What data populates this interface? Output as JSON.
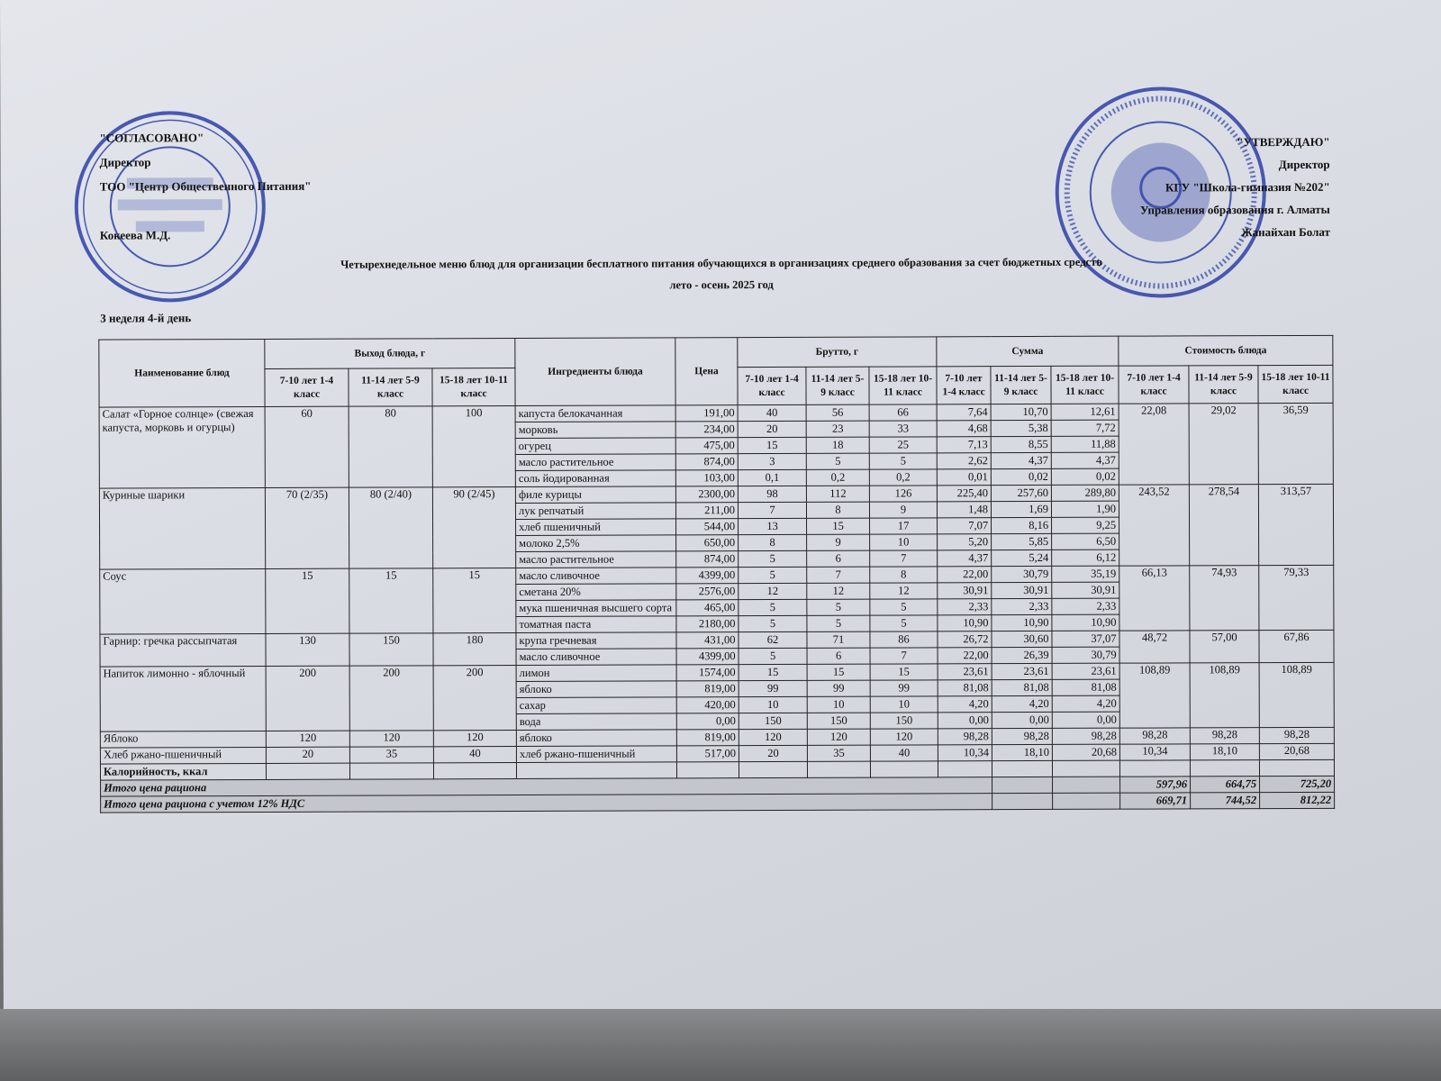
{
  "approval_left": {
    "label": "\"СОГЛАСОВАНО\"",
    "role": "Директор",
    "org": "ТОО \"Центр Общественного Питания\"",
    "name": "Кокеева М.Д."
  },
  "approval_right": {
    "label": "\"УТВЕРЖДАЮ\"",
    "role": "Директор",
    "org": "КГУ \"Школа-гимназия №202\"",
    "dept": "Управления образования г. Алматы",
    "name": "Жанайхан Болат"
  },
  "stamps": {
    "left": "Центр Общественного Питания",
    "right": "БСН 201... 10030808 МЕКТЕП-ГИМНАЗИЯ №202"
  },
  "stamp_color": "#2d3fa8",
  "title": "Четырехнедельное меню блюд для организации бесплатного питания обучающихся в организациях среднего образования за счет бюджетных средств",
  "subtitle": "лето - осень 2025 год",
  "week_day": "3 неделя 4-й день",
  "table": {
    "headers": {
      "name": "Наименование блюд",
      "yield": "Выход блюда, г",
      "ingredients": "Ингредиенты блюда",
      "price": "Цена",
      "brutto": "Брутто, г",
      "sum": "Сумма",
      "cost": "Стоимость блюда",
      "ages": [
        "7-10 лет 1-4 класс",
        "11-14 лет 5-9 класс",
        "15-18 лет 10-11 класс"
      ]
    },
    "dishes": [
      {
        "name": "Салат «Горное солнце» (свежая капуста, морковь и огурцы)",
        "yield": [
          "60",
          "80",
          "100"
        ],
        "cost": [
          "22,08",
          "29,02",
          "36,59"
        ],
        "ingredients": [
          {
            "name": "капуста белокачанная",
            "price": "191,00",
            "brutto": [
              "40",
              "56",
              "66"
            ],
            "sum": [
              "7,64",
              "10,70",
              "12,61"
            ]
          },
          {
            "name": "морковь",
            "price": "234,00",
            "brutto": [
              "20",
              "23",
              "33"
            ],
            "sum": [
              "4,68",
              "5,38",
              "7,72"
            ]
          },
          {
            "name": "огурец",
            "price": "475,00",
            "brutto": [
              "15",
              "18",
              "25"
            ],
            "sum": [
              "7,13",
              "8,55",
              "11,88"
            ]
          },
          {
            "name": "масло растительное",
            "price": "874,00",
            "brutto": [
              "3",
              "5",
              "5"
            ],
            "sum": [
              "2,62",
              "4,37",
              "4,37"
            ]
          },
          {
            "name": "соль йодированная",
            "price": "103,00",
            "brutto": [
              "0,1",
              "0,2",
              "0,2"
            ],
            "sum": [
              "0,01",
              "0,02",
              "0,02"
            ]
          }
        ]
      },
      {
        "name": "Куриные шарики",
        "yield": [
          "70 (2/35)",
          "80 (2/40)",
          "90 (2/45)"
        ],
        "cost": [
          "243,52",
          "278,54",
          "313,57"
        ],
        "ingredients": [
          {
            "name": "филе курицы",
            "price": "2300,00",
            "brutto": [
              "98",
              "112",
              "126"
            ],
            "sum": [
              "225,40",
              "257,60",
              "289,80"
            ]
          },
          {
            "name": "лук репчатый",
            "price": "211,00",
            "brutto": [
              "7",
              "8",
              "9"
            ],
            "sum": [
              "1,48",
              "1,69",
              "1,90"
            ]
          },
          {
            "name": "хлеб пшеничный",
            "price": "544,00",
            "brutto": [
              "13",
              "15",
              "17"
            ],
            "sum": [
              "7,07",
              "8,16",
              "9,25"
            ]
          },
          {
            "name": "молоко 2,5%",
            "price": "650,00",
            "brutto": [
              "8",
              "9",
              "10"
            ],
            "sum": [
              "5,20",
              "5,85",
              "6,50"
            ]
          },
          {
            "name": "масло растительное",
            "price": "874,00",
            "brutto": [
              "5",
              "6",
              "7"
            ],
            "sum": [
              "4,37",
              "5,24",
              "6,12"
            ]
          }
        ]
      },
      {
        "name": "Соус",
        "yield": [
          "15",
          "15",
          "15"
        ],
        "cost": [
          "66,13",
          "74,93",
          "79,33"
        ],
        "ingredients": [
          {
            "name": "масло сливочное",
            "price": "4399,00",
            "brutto": [
              "5",
              "7",
              "8"
            ],
            "sum": [
              "22,00",
              "30,79",
              "35,19"
            ]
          },
          {
            "name": "сметана 20%",
            "price": "2576,00",
            "brutto": [
              "12",
              "12",
              "12"
            ],
            "sum": [
              "30,91",
              "30,91",
              "30,91"
            ]
          },
          {
            "name": "мука пшеничная высшего сорта",
            "price": "465,00",
            "brutto": [
              "5",
              "5",
              "5"
            ],
            "sum": [
              "2,33",
              "2,33",
              "2,33"
            ]
          },
          {
            "name": "томатная паста",
            "price": "2180,00",
            "brutto": [
              "5",
              "5",
              "5"
            ],
            "sum": [
              "10,90",
              "10,90",
              "10,90"
            ]
          }
        ]
      },
      {
        "name": "Гарнир: гречка рассыпчатая",
        "yield": [
          "130",
          "150",
          "180"
        ],
        "cost": [
          "48,72",
          "57,00",
          "67,86"
        ],
        "ingredients": [
          {
            "name": "крупа гречневая",
            "price": "431,00",
            "brutto": [
              "62",
              "71",
              "86"
            ],
            "sum": [
              "26,72",
              "30,60",
              "37,07"
            ]
          },
          {
            "name": "масло сливочное",
            "price": "4399,00",
            "brutto": [
              "5",
              "6",
              "7"
            ],
            "sum": [
              "22,00",
              "26,39",
              "30,79"
            ]
          }
        ]
      },
      {
        "name": "Напиток лимонно - яблочный",
        "yield": [
          "200",
          "200",
          "200"
        ],
        "cost": [
          "108,89",
          "108,89",
          "108,89"
        ],
        "ingredients": [
          {
            "name": "лимон",
            "price": "1574,00",
            "brutto": [
              "15",
              "15",
              "15"
            ],
            "sum": [
              "23,61",
              "23,61",
              "23,61"
            ]
          },
          {
            "name": "яблоко",
            "price": "819,00",
            "brutto": [
              "99",
              "99",
              "99"
            ],
            "sum": [
              "81,08",
              "81,08",
              "81,08"
            ]
          },
          {
            "name": "сахар",
            "price": "420,00",
            "brutto": [
              "10",
              "10",
              "10"
            ],
            "sum": [
              "4,20",
              "4,20",
              "4,20"
            ]
          },
          {
            "name": "вода",
            "price": "0,00",
            "brutto": [
              "150",
              "150",
              "150"
            ],
            "sum": [
              "0,00",
              "0,00",
              "0,00"
            ]
          }
        ]
      },
      {
        "name": "Яблоко",
        "yield": [
          "120",
          "120",
          "120"
        ],
        "cost": [
          "98,28",
          "98,28",
          "98,28"
        ],
        "ingredients": [
          {
            "name": "яблоко",
            "price": "819,00",
            "brutto": [
              "120",
              "120",
              "120"
            ],
            "sum": [
              "98,28",
              "98,28",
              "98,28"
            ]
          }
        ]
      },
      {
        "name": "Хлеб ржано-пшеничный",
        "yield": [
          "20",
          "35",
          "40"
        ],
        "cost": [
          "10,34",
          "18,10",
          "20,68"
        ],
        "ingredients": [
          {
            "name": "хлеб ржано-пшеничный",
            "price": "517,00",
            "brutto": [
              "20",
              "35",
              "40"
            ],
            "sum": [
              "10,34",
              "18,10",
              "20,68"
            ]
          }
        ]
      }
    ],
    "calories_label": "Калорийность, ккал",
    "total_label": "Итого цена рациона",
    "total": [
      "597,96",
      "664,75",
      "725,20"
    ],
    "total_vat_label": "Итого цена рациона с учетом 12% НДС",
    "total_vat": [
      "669,71",
      "744,52",
      "812,22"
    ]
  }
}
